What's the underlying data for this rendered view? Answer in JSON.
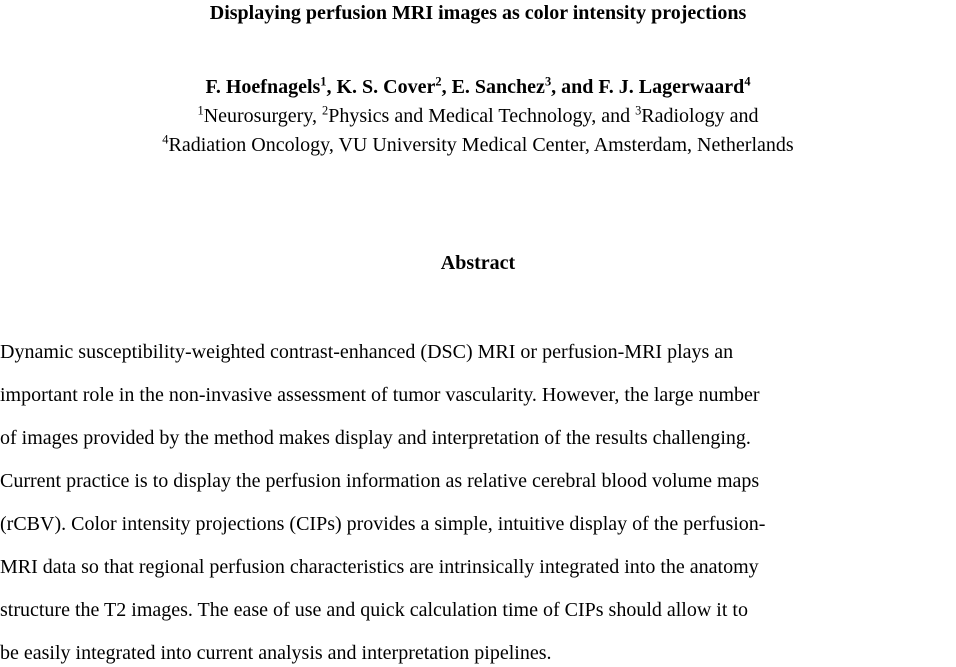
{
  "paper": {
    "title": "Displaying perfusion MRI images as color intensity projections",
    "authors": {
      "name1": "F. Hoefnagels",
      "sup1": "1",
      "name2": ", K. S. Cover",
      "sup2": "2",
      "name3": ", E. Sanchez",
      "sup3": "3",
      "name4": ", and F. J. Lagerwaard",
      "sup4": "4"
    },
    "affiliations": {
      "line1": {
        "sup1": "1",
        "text1": "Neurosurgery, ",
        "sup2": "2",
        "text2": "Physics and Medical Technology, and ",
        "sup3": "3",
        "text3": "Radiology and"
      },
      "line2": {
        "sup4": "4",
        "text4": "Radiation Oncology, VU University Medical Center, Amsterdam, Netherlands"
      }
    },
    "abstract": {
      "heading": "Abstract",
      "lines": [
        "Dynamic susceptibility-weighted contrast-enhanced (DSC) MRI or perfusion-MRI plays an",
        "important role in the non-invasive assessment of tumor vascularity. However, the large number",
        "of images provided by the method makes display and interpretation of the results challenging.",
        "Current practice is to display the perfusion information as relative cerebral blood volume maps",
        "(rCBV). Color intensity projections (CIPs) provides a simple, intuitive display of the perfusion-",
        "MRI data so that regional perfusion characteristics are intrinsically integrated into the anatomy",
        "structure the T2 images. The ease of use and quick calculation time of CIPs should allow it to",
        "be easily integrated into current analysis and interpretation pipelines."
      ]
    },
    "colors": {
      "background": "#ffffff",
      "text": "#000000"
    }
  }
}
